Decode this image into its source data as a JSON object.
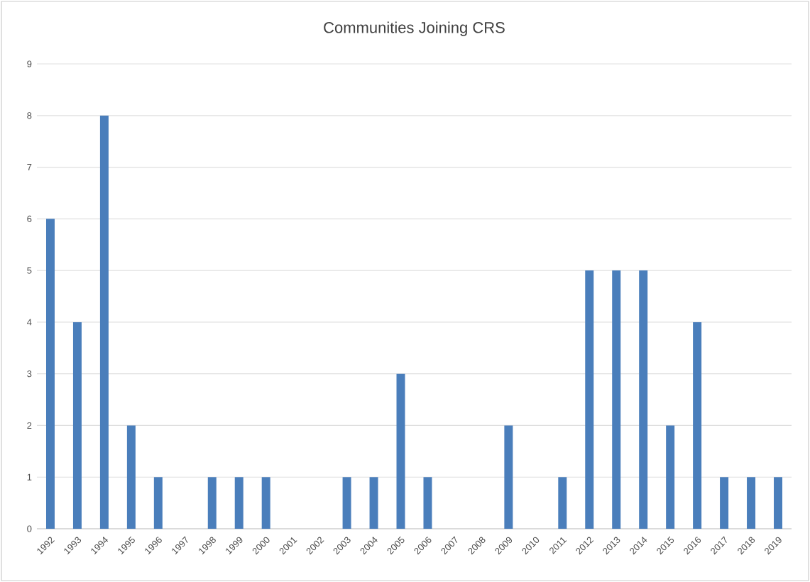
{
  "chart_data": {
    "type": "bar",
    "title": "Communities Joining CRS",
    "categories": [
      "1992",
      "1993",
      "1994",
      "1995",
      "1996",
      "1997",
      "1998",
      "1999",
      "2000",
      "2001",
      "2002",
      "2003",
      "2004",
      "2005",
      "2006",
      "2007",
      "2008",
      "2009",
      "2010",
      "2011",
      "2012",
      "2013",
      "2014",
      "2015",
      "2016",
      "2017",
      "2018",
      "2019"
    ],
    "values": [
      6,
      4,
      8,
      2,
      1,
      0,
      1,
      1,
      1,
      0,
      0,
      1,
      1,
      3,
      1,
      0,
      0,
      2,
      0,
      1,
      5,
      5,
      5,
      2,
      4,
      1,
      1,
      1
    ],
    "color": "#4a7ebb",
    "ylim": [
      0,
      9
    ],
    "yticks": [
      0,
      1,
      2,
      3,
      4,
      5,
      6,
      7,
      8,
      9
    ],
    "grid": "y"
  }
}
